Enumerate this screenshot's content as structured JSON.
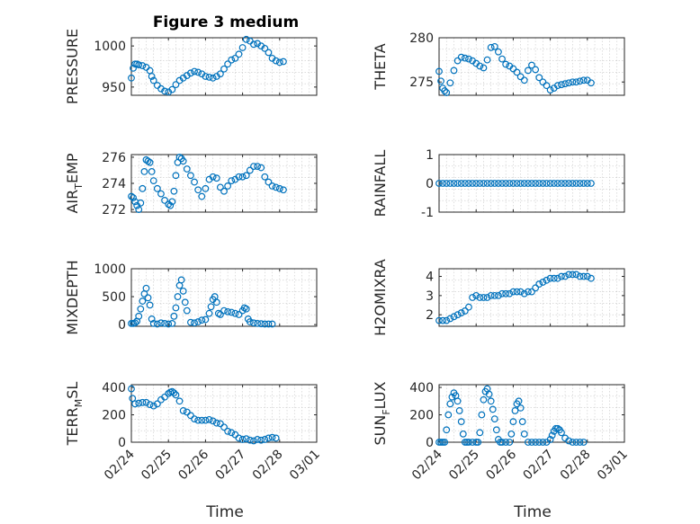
{
  "figure": {
    "title": "Figure 3 medium"
  },
  "colors": {
    "marker": "#0072BD",
    "axis": "#262626",
    "grid": "#c8c8c8"
  },
  "chart_data": [
    {
      "type": "scatter",
      "title": "Figure 3 medium",
      "ylabel": "PRESSURE",
      "xlabel": "",
      "xlim": [
        "02/24",
        "03/01"
      ],
      "ylim": [
        940,
        1010
      ],
      "yticks": [
        950,
        1000
      ],
      "xticks": [],
      "grid": true,
      "x": [
        0.0,
        0.05,
        0.1,
        0.15,
        0.2,
        0.3,
        0.4,
        0.5,
        0.55,
        0.6,
        0.7,
        0.8,
        0.9,
        1.0,
        1.1,
        1.2,
        1.3,
        1.4,
        1.5,
        1.6,
        1.7,
        1.8,
        1.9,
        2.0,
        2.1,
        2.2,
        2.3,
        2.4,
        2.5,
        2.6,
        2.7,
        2.8,
        2.9,
        3.0,
        3.1,
        3.2,
        3.3,
        3.4,
        3.5,
        3.6,
        3.7,
        3.8,
        3.9,
        4.0,
        4.1
      ],
      "y": [
        961,
        973,
        978,
        978,
        977,
        976,
        974,
        970,
        963,
        958,
        952,
        948,
        945,
        944,
        947,
        953,
        958,
        961,
        964,
        967,
        969,
        968,
        966,
        963,
        962,
        961,
        963,
        966,
        972,
        978,
        983,
        985,
        990,
        998,
        1008,
        1006,
        1002,
        1003,
        1000,
        997,
        992,
        985,
        982,
        980,
        981
      ]
    },
    {
      "type": "scatter",
      "ylabel": "THETA",
      "xlabel": "",
      "xlim": [
        "02/24",
        "03/01"
      ],
      "ylim": [
        273.5,
        280
      ],
      "yticks": [
        275,
        280
      ],
      "xticks": [],
      "grid": true,
      "x": [
        0.0,
        0.05,
        0.1,
        0.15,
        0.2,
        0.3,
        0.4,
        0.5,
        0.6,
        0.7,
        0.8,
        0.9,
        1.0,
        1.1,
        1.2,
        1.3,
        1.4,
        1.5,
        1.6,
        1.7,
        1.8,
        1.9,
        2.0,
        2.1,
        2.2,
        2.3,
        2.4,
        2.5,
        2.6,
        2.7,
        2.8,
        2.9,
        3.0,
        3.1,
        3.2,
        3.3,
        3.4,
        3.5,
        3.6,
        3.7,
        3.8,
        3.9,
        4.0,
        4.1
      ],
      "y": [
        276.2,
        275.1,
        274.3,
        274.0,
        273.8,
        274.9,
        276.3,
        277.4,
        277.8,
        277.7,
        277.6,
        277.4,
        277.1,
        276.8,
        276.6,
        277.5,
        278.9,
        279.0,
        278.4,
        277.6,
        277.0,
        276.8,
        276.5,
        276.1,
        275.6,
        275.2,
        276.3,
        276.9,
        276.4,
        275.5,
        275.0,
        274.6,
        274.1,
        274.3,
        274.6,
        274.7,
        274.8,
        274.9,
        275.0,
        275.0,
        275.1,
        275.2,
        275.2,
        274.9
      ]
    },
    {
      "type": "scatter",
      "ylabel": "AIR_TEMP",
      "xlabel": "",
      "xlim": [
        "02/24",
        "03/01"
      ],
      "ylim": [
        271.8,
        276.2
      ],
      "yticks": [
        272,
        274,
        276
      ],
      "xticks": [],
      "grid": true,
      "x": [
        0.0,
        0.05,
        0.1,
        0.15,
        0.2,
        0.25,
        0.3,
        0.35,
        0.4,
        0.45,
        0.5,
        0.55,
        0.6,
        0.7,
        0.8,
        0.9,
        1.0,
        1.05,
        1.1,
        1.15,
        1.2,
        1.25,
        1.3,
        1.35,
        1.4,
        1.5,
        1.6,
        1.7,
        1.8,
        1.9,
        2.0,
        2.1,
        2.2,
        2.3,
        2.4,
        2.5,
        2.6,
        2.7,
        2.8,
        2.9,
        3.0,
        3.1,
        3.2,
        3.3,
        3.4,
        3.5,
        3.6,
        3.7,
        3.8,
        3.9,
        4.0,
        4.1
      ],
      "y": [
        273.0,
        272.9,
        272.6,
        272.3,
        272.0,
        272.5,
        273.6,
        274.9,
        275.8,
        275.7,
        275.6,
        274.9,
        274.2,
        273.6,
        273.2,
        272.7,
        272.4,
        272.3,
        272.6,
        273.4,
        274.6,
        275.6,
        276.0,
        275.9,
        275.7,
        275.1,
        274.6,
        274.1,
        273.5,
        273.0,
        273.6,
        274.3,
        274.5,
        274.4,
        273.7,
        273.4,
        273.8,
        274.2,
        274.3,
        274.5,
        274.5,
        274.6,
        275.0,
        275.3,
        275.3,
        275.2,
        274.5,
        274.1,
        273.8,
        273.7,
        273.6,
        273.5
      ]
    },
    {
      "type": "scatter",
      "ylabel": "RAINFALL",
      "xlabel": "",
      "xlim": [
        "02/24",
        "03/01"
      ],
      "ylim": [
        -1,
        1
      ],
      "yticks": [
        -1,
        0,
        1
      ],
      "xticks": [],
      "grid": true,
      "x": [
        0.0,
        0.1,
        0.2,
        0.3,
        0.4,
        0.5,
        0.6,
        0.7,
        0.8,
        0.9,
        1.0,
        1.1,
        1.2,
        1.3,
        1.4,
        1.5,
        1.6,
        1.7,
        1.8,
        1.9,
        2.0,
        2.1,
        2.2,
        2.3,
        2.4,
        2.5,
        2.6,
        2.7,
        2.8,
        2.9,
        3.0,
        3.1,
        3.2,
        3.3,
        3.4,
        3.5,
        3.6,
        3.7,
        3.8,
        3.9,
        4.0,
        4.1
      ],
      "y": [
        0,
        0,
        0,
        0,
        0,
        0,
        0,
        0,
        0,
        0,
        0,
        0,
        0,
        0,
        0,
        0,
        0,
        0,
        0,
        0,
        0,
        0,
        0,
        0,
        0,
        0,
        0,
        0,
        0,
        0,
        0,
        0,
        0,
        0,
        0,
        0,
        0,
        0,
        0,
        0,
        0,
        0
      ]
    },
    {
      "type": "scatter",
      "ylabel": "MIXDEPTH",
      "xlabel": "",
      "xlim": [
        "02/24",
        "03/01"
      ],
      "ylim": [
        -30,
        1000
      ],
      "yticks": [
        0,
        500,
        1000
      ],
      "xticks": [],
      "grid": true,
      "x": [
        0.0,
        0.05,
        0.1,
        0.15,
        0.2,
        0.25,
        0.3,
        0.35,
        0.4,
        0.45,
        0.5,
        0.55,
        0.6,
        0.7,
        0.8,
        0.9,
        1.0,
        1.1,
        1.15,
        1.2,
        1.25,
        1.3,
        1.35,
        1.4,
        1.45,
        1.5,
        1.6,
        1.7,
        1.8,
        1.9,
        2.0,
        2.1,
        2.15,
        2.2,
        2.25,
        2.3,
        2.35,
        2.4,
        2.5,
        2.6,
        2.7,
        2.8,
        2.9,
        3.0,
        3.05,
        3.1,
        3.15,
        3.2,
        3.3,
        3.4,
        3.5,
        3.6,
        3.7,
        3.8
      ],
      "y": [
        20,
        20,
        30,
        60,
        150,
        280,
        420,
        550,
        650,
        480,
        350,
        100,
        20,
        10,
        30,
        20,
        10,
        20,
        150,
        300,
        500,
        700,
        800,
        600,
        400,
        250,
        40,
        30,
        50,
        80,
        90,
        200,
        320,
        450,
        500,
        400,
        200,
        180,
        250,
        230,
        220,
        200,
        180,
        250,
        300,
        280,
        100,
        50,
        30,
        20,
        15,
        10,
        10,
        10
      ]
    },
    {
      "type": "scatter",
      "ylabel": "H2OMIXRA",
      "xlabel": "",
      "xlim": [
        "02/24",
        "03/01"
      ],
      "ylim": [
        1.4,
        4.4
      ],
      "yticks": [
        2,
        3,
        4
      ],
      "xticks": [],
      "grid": true,
      "x": [
        0.0,
        0.1,
        0.2,
        0.3,
        0.4,
        0.5,
        0.6,
        0.7,
        0.8,
        0.9,
        1.0,
        1.1,
        1.2,
        1.3,
        1.4,
        1.5,
        1.6,
        1.7,
        1.8,
        1.9,
        2.0,
        2.1,
        2.2,
        2.3,
        2.4,
        2.5,
        2.6,
        2.7,
        2.8,
        2.9,
        3.0,
        3.1,
        3.2,
        3.3,
        3.4,
        3.5,
        3.6,
        3.7,
        3.8,
        3.9,
        4.0,
        4.1
      ],
      "y": [
        1.7,
        1.7,
        1.7,
        1.8,
        1.9,
        2.0,
        2.1,
        2.2,
        2.4,
        2.9,
        3.0,
        2.9,
        2.9,
        2.9,
        3.0,
        3.0,
        3.0,
        3.1,
        3.1,
        3.1,
        3.2,
        3.2,
        3.2,
        3.1,
        3.2,
        3.2,
        3.4,
        3.6,
        3.7,
        3.8,
        3.9,
        3.9,
        3.9,
        4.0,
        4.0,
        4.1,
        4.1,
        4.1,
        4.0,
        4.0,
        4.0,
        3.9
      ]
    },
    {
      "type": "scatter",
      "ylabel": "TERR_MSL",
      "xlabel": "Time",
      "xlim": [
        "02/24",
        "03/01"
      ],
      "ylim": [
        0,
        420
      ],
      "yticks": [
        0,
        200,
        400
      ],
      "xticks": [
        "02/24",
        "02/25",
        "02/26",
        "02/27",
        "02/28",
        "03/01"
      ],
      "grid": true,
      "x": [
        0.0,
        0.03,
        0.1,
        0.2,
        0.3,
        0.4,
        0.5,
        0.6,
        0.7,
        0.8,
        0.9,
        1.0,
        1.05,
        1.1,
        1.15,
        1.2,
        1.3,
        1.4,
        1.5,
        1.6,
        1.7,
        1.8,
        1.9,
        2.0,
        2.1,
        2.2,
        2.3,
        2.4,
        2.5,
        2.6,
        2.7,
        2.8,
        2.9,
        3.0,
        3.1,
        3.2,
        3.3,
        3.4,
        3.5,
        3.6,
        3.7,
        3.8,
        3.9
      ],
      "y": [
        390,
        320,
        280,
        285,
        290,
        290,
        275,
        265,
        280,
        310,
        330,
        355,
        365,
        370,
        360,
        345,
        300,
        230,
        220,
        195,
        170,
        160,
        160,
        160,
        165,
        155,
        140,
        135,
        110,
        80,
        70,
        55,
        30,
        20,
        25,
        15,
        10,
        20,
        15,
        20,
        30,
        35,
        30
      ]
    },
    {
      "type": "scatter",
      "ylabel": "SUN_FLUX",
      "xlabel": "Time",
      "xlim": [
        "02/24",
        "03/01"
      ],
      "ylim": [
        0,
        420
      ],
      "yticks": [
        0,
        200,
        400
      ],
      "xticks": [
        "02/24",
        "02/25",
        "02/26",
        "02/27",
        "02/28",
        "03/01"
      ],
      "grid": true,
      "x": [
        0.0,
        0.05,
        0.1,
        0.15,
        0.2,
        0.25,
        0.3,
        0.35,
        0.4,
        0.45,
        0.5,
        0.55,
        0.6,
        0.65,
        0.7,
        0.75,
        0.8,
        0.9,
        1.0,
        1.05,
        1.1,
        1.15,
        1.2,
        1.25,
        1.3,
        1.35,
        1.4,
        1.45,
        1.5,
        1.55,
        1.6,
        1.65,
        1.7,
        1.8,
        1.9,
        1.95,
        2.0,
        2.05,
        2.1,
        2.15,
        2.2,
        2.25,
        2.3,
        2.4,
        2.5,
        2.6,
        2.7,
        2.8,
        2.9,
        3.0,
        3.05,
        3.1,
        3.15,
        3.2,
        3.25,
        3.3,
        3.4,
        3.5,
        3.6,
        3.7,
        3.8,
        3.9
      ],
      "y": [
        0,
        0,
        0,
        0,
        90,
        200,
        280,
        330,
        360,
        340,
        300,
        230,
        150,
        60,
        0,
        0,
        0,
        0,
        0,
        0,
        70,
        200,
        310,
        370,
        390,
        350,
        300,
        240,
        170,
        90,
        20,
        0,
        0,
        0,
        0,
        60,
        150,
        230,
        280,
        300,
        250,
        150,
        60,
        0,
        0,
        0,
        0,
        0,
        0,
        20,
        50,
        80,
        100,
        100,
        90,
        70,
        30,
        10,
        0,
        0,
        0,
        0
      ]
    }
  ]
}
